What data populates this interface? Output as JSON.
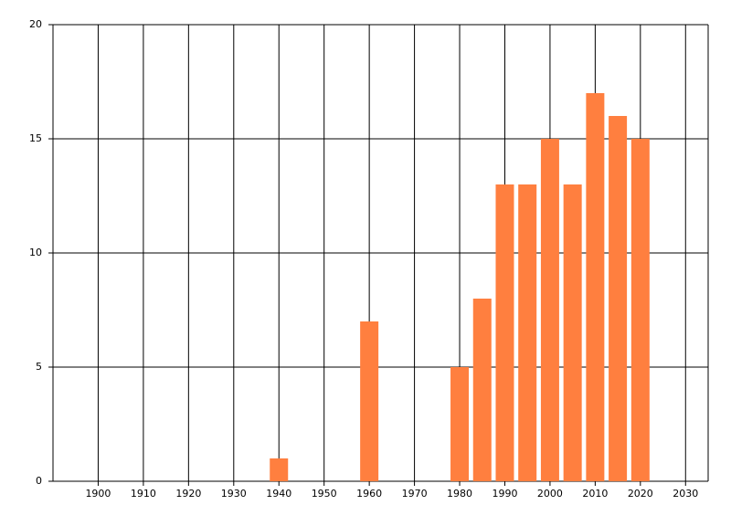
{
  "chart_data": {
    "type": "bar",
    "x": [
      1940,
      1960,
      1980,
      1985,
      1990,
      1995,
      2000,
      2005,
      2010,
      2015,
      2020
    ],
    "values": [
      1,
      7,
      5,
      8,
      13,
      13,
      15,
      13,
      17,
      16,
      15
    ],
    "color": "#ff7f3f",
    "xlim": [
      1890,
      2035
    ],
    "xticks": [
      1900,
      1910,
      1920,
      1930,
      1940,
      1950,
      1960,
      1970,
      1980,
      1990,
      2000,
      2010,
      2020,
      2030
    ],
    "ylim": [
      0,
      20
    ],
    "yticks": [
      0,
      5,
      10,
      15,
      20
    ],
    "grid": true
  }
}
